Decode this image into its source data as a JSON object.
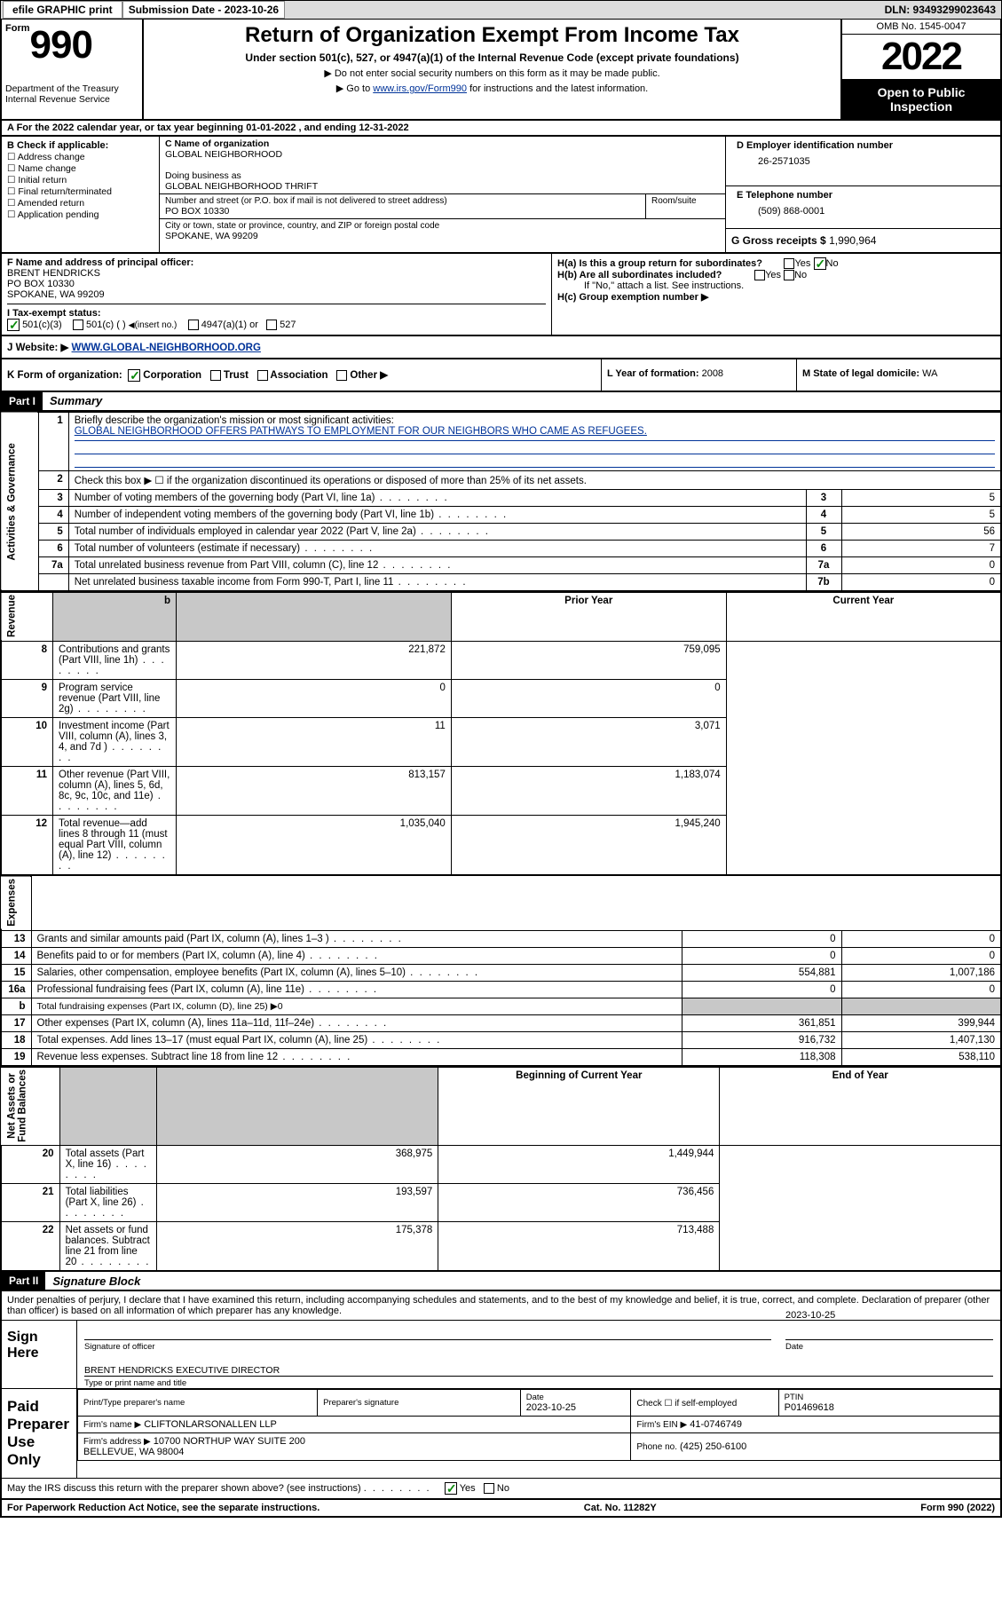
{
  "header_bar": {
    "efile_btn": "efile GRAPHIC print",
    "sub_lbl": "Submission Date - 2023-10-26",
    "dln": "DLN: 93493299023643"
  },
  "form_header": {
    "form_prefix": "Form",
    "form_num": "990",
    "dept": "Department of the Treasury\nInternal Revenue Service",
    "title": "Return of Organization Exempt From Income Tax",
    "subtitle": "Under section 501(c), 527, or 4947(a)(1) of the Internal Revenue Code (except private foundations)",
    "note1": "▶ Do not enter social security numbers on this form as it may be made public.",
    "note2_pre": "▶ Go to ",
    "note2_link": "www.irs.gov/Form990",
    "note2_post": " for instructions and the latest information.",
    "omb": "OMB No. 1545-0047",
    "year": "2022",
    "open": "Open to Public Inspection"
  },
  "row_a": "A For the 2022 calendar year, or tax year beginning 01-01-2022    , and ending 12-31-2022",
  "sec_b": {
    "hdr": "B Check if applicable:",
    "items": [
      "Address change",
      "Name change",
      "Initial return",
      "Final return/terminated",
      "Amended return",
      "Application pending"
    ]
  },
  "sec_c": {
    "name_lbl": "C Name of organization",
    "name": "GLOBAL NEIGHBORHOOD",
    "dba_lbl": "Doing business as",
    "dba": "GLOBAL NEIGHBORHOOD THRIFT",
    "addr_lbl": "Number and street (or P.O. box if mail is not delivered to street address)",
    "room_lbl": "Room/suite",
    "addr": "PO BOX 10330",
    "city_lbl": "City or town, state or province, country, and ZIP or foreign postal code",
    "city": "SPOKANE, WA  99209"
  },
  "sec_d": {
    "lbl": "D Employer identification number",
    "val": "26-2571035"
  },
  "sec_e": {
    "lbl": "E Telephone number",
    "val": "(509) 868-0001"
  },
  "sec_g": {
    "lbl": "G Gross receipts $",
    "val": "1,990,964"
  },
  "sec_f": {
    "lbl": "F  Name and address of principal officer:",
    "name": "BRENT HENDRICKS",
    "addr1": "PO BOX 10330",
    "addr2": "SPOKANE, WA  99209"
  },
  "sec_h": {
    "ha": "H(a)  Is this a group return for subordinates?",
    "hb": "H(b)  Are all subordinates included?",
    "hb_note": "If \"No,\" attach a list. See instructions.",
    "hc": "H(c)  Group exemption number ▶",
    "yes": "Yes",
    "no": "No"
  },
  "sec_i": {
    "lbl": "I    Tax-exempt status:",
    "o1": "501(c)(3)",
    "o2": "501(c) (  )",
    "o2_ins": "(insert no.)",
    "o3": "4947(a)(1) or",
    "o4": "527"
  },
  "sec_j": {
    "lbl": "J    Website: ▶",
    "val": "WWW.GLOBAL-NEIGHBORHOOD.ORG"
  },
  "sec_k": {
    "lbl": "K Form of organization:",
    "o1": "Corporation",
    "o2": "Trust",
    "o3": "Association",
    "o4": "Other ▶"
  },
  "sec_l": {
    "lbl": "L Year of formation:",
    "val": "2008"
  },
  "sec_m": {
    "lbl": "M State of legal domicile:",
    "val": "WA"
  },
  "part1": {
    "hdr": "Part I",
    "title": "Summary"
  },
  "summary": {
    "q1": "Briefly describe the organization's mission or most significant activities:",
    "q1_ans": "GLOBAL NEIGHBORHOOD OFFERS PATHWAYS TO EMPLOYMENT FOR OUR NEIGHBORS WHO CAME AS REFUGEES.",
    "q2": "Check this box ▶ ☐  if the organization discontinued its operations or disposed of more than 25% of its net assets.",
    "rows_ag": [
      {
        "n": "3",
        "t": "Number of voting members of the governing body (Part VI, line 1a)",
        "b": "3",
        "v": "5"
      },
      {
        "n": "4",
        "t": "Number of independent voting members of the governing body (Part VI, line 1b)",
        "b": "4",
        "v": "5"
      },
      {
        "n": "5",
        "t": "Total number of individuals employed in calendar year 2022 (Part V, line 2a)",
        "b": "5",
        "v": "56"
      },
      {
        "n": "6",
        "t": "Total number of volunteers (estimate if necessary)",
        "b": "6",
        "v": "7"
      },
      {
        "n": "7a",
        "t": "Total unrelated business revenue from Part VIII, column (C), line 12",
        "b": "7a",
        "v": "0"
      },
      {
        "n": "",
        "t": "Net unrelated business taxable income from Form 990-T, Part I, line 11",
        "b": "7b",
        "v": "0"
      }
    ],
    "col_prior": "Prior Year",
    "col_curr": "Current Year",
    "rev_rows": [
      {
        "n": "8",
        "t": "Contributions and grants (Part VIII, line 1h)",
        "p": "221,872",
        "c": "759,095"
      },
      {
        "n": "9",
        "t": "Program service revenue (Part VIII, line 2g)",
        "p": "0",
        "c": "0"
      },
      {
        "n": "10",
        "t": "Investment income (Part VIII, column (A), lines 3, 4, and 7d )",
        "p": "11",
        "c": "3,071"
      },
      {
        "n": "11",
        "t": "Other revenue (Part VIII, column (A), lines 5, 6d, 8c, 9c, 10c, and 11e)",
        "p": "813,157",
        "c": "1,183,074"
      },
      {
        "n": "12",
        "t": "Total revenue—add lines 8 through 11 (must equal Part VIII, column (A), line 12)",
        "p": "1,035,040",
        "c": "1,945,240"
      }
    ],
    "exp_rows": [
      {
        "n": "13",
        "t": "Grants and similar amounts paid (Part IX, column (A), lines 1–3 )",
        "p": "0",
        "c": "0"
      },
      {
        "n": "14",
        "t": "Benefits paid to or for members (Part IX, column (A), line 4)",
        "p": "0",
        "c": "0"
      },
      {
        "n": "15",
        "t": "Salaries, other compensation, employee benefits (Part IX, column (A), lines 5–10)",
        "p": "554,881",
        "c": "1,007,186"
      },
      {
        "n": "16a",
        "t": "Professional fundraising fees (Part IX, column (A), line 11e)",
        "p": "0",
        "c": "0"
      },
      {
        "n": "b",
        "t": "Total fundraising expenses (Part IX, column (D), line 25) ▶0",
        "p": "",
        "c": "",
        "shade": true
      },
      {
        "n": "17",
        "t": "Other expenses (Part IX, column (A), lines 11a–11d, 11f–24e)",
        "p": "361,851",
        "c": "399,944"
      },
      {
        "n": "18",
        "t": "Total expenses. Add lines 13–17 (must equal Part IX, column (A), line 25)",
        "p": "916,732",
        "c": "1,407,130"
      },
      {
        "n": "19",
        "t": "Revenue less expenses. Subtract line 18 from line 12",
        "p": "118,308",
        "c": "538,110"
      }
    ],
    "col_beg": "Beginning of Current Year",
    "col_end": "End of Year",
    "na_rows": [
      {
        "n": "20",
        "t": "Total assets (Part X, line 16)",
        "p": "368,975",
        "c": "1,449,944"
      },
      {
        "n": "21",
        "t": "Total liabilities (Part X, line 26)",
        "p": "193,597",
        "c": "736,456"
      },
      {
        "n": "22",
        "t": "Net assets or fund balances. Subtract line 21 from line 20",
        "p": "175,378",
        "c": "713,488"
      }
    ],
    "vlabels": {
      "ag": "Activities & Governance",
      "rev": "Revenue",
      "exp": "Expenses",
      "na": "Net Assets or\nFund Balances"
    }
  },
  "part2": {
    "hdr": "Part II",
    "title": "Signature Block"
  },
  "sig": {
    "decl": "Under penalties of perjury, I declare that I have examined this return, including accompanying schedules and statements, and to the best of my knowledge and belief, it is true, correct, and complete. Declaration of preparer (other than officer) is based on all information of which preparer has any knowledge.",
    "sign_here": "Sign Here",
    "sig_of": "Signature of officer",
    "date_lbl": "Date",
    "date_val": "2023-10-25",
    "name": "BRENT HENDRICKS  EXECUTIVE DIRECTOR",
    "name_cap": "Type or print name and title",
    "paid": "Paid Preparer Use Only",
    "prep_name_lbl": "Print/Type preparer's name",
    "prep_sig_lbl": "Preparer's signature",
    "prep_date_lbl": "Date",
    "prep_date": "2023-10-25",
    "self_emp": "Check ☐ if self-employed",
    "ptin_lbl": "PTIN",
    "ptin": "P01469618",
    "firm_name_lbl": "Firm's name    ▶",
    "firm_name": "CLIFTONLARSONALLEN LLP",
    "firm_ein_lbl": "Firm's EIN ▶",
    "firm_ein": "41-0746749",
    "firm_addr_lbl": "Firm's address ▶",
    "firm_addr": "10700 NORTHUP WAY SUITE 200\nBELLEVUE, WA  98004",
    "phone_lbl": "Phone no.",
    "phone": "(425) 250-6100",
    "discuss": "May the IRS discuss this return with the preparer shown above? (see instructions)",
    "yes": "Yes",
    "no": "No"
  },
  "footer": {
    "pra": "For Paperwork Reduction Act Notice, see the separate instructions.",
    "cat": "Cat. No. 11282Y",
    "form": "Form 990 (2022)"
  },
  "colors": {
    "link": "#003399",
    "check": "#0a8a0a",
    "shade": "#c8c8c8",
    "hdr_bg": "#dcdcdc",
    "black": "#000000"
  }
}
